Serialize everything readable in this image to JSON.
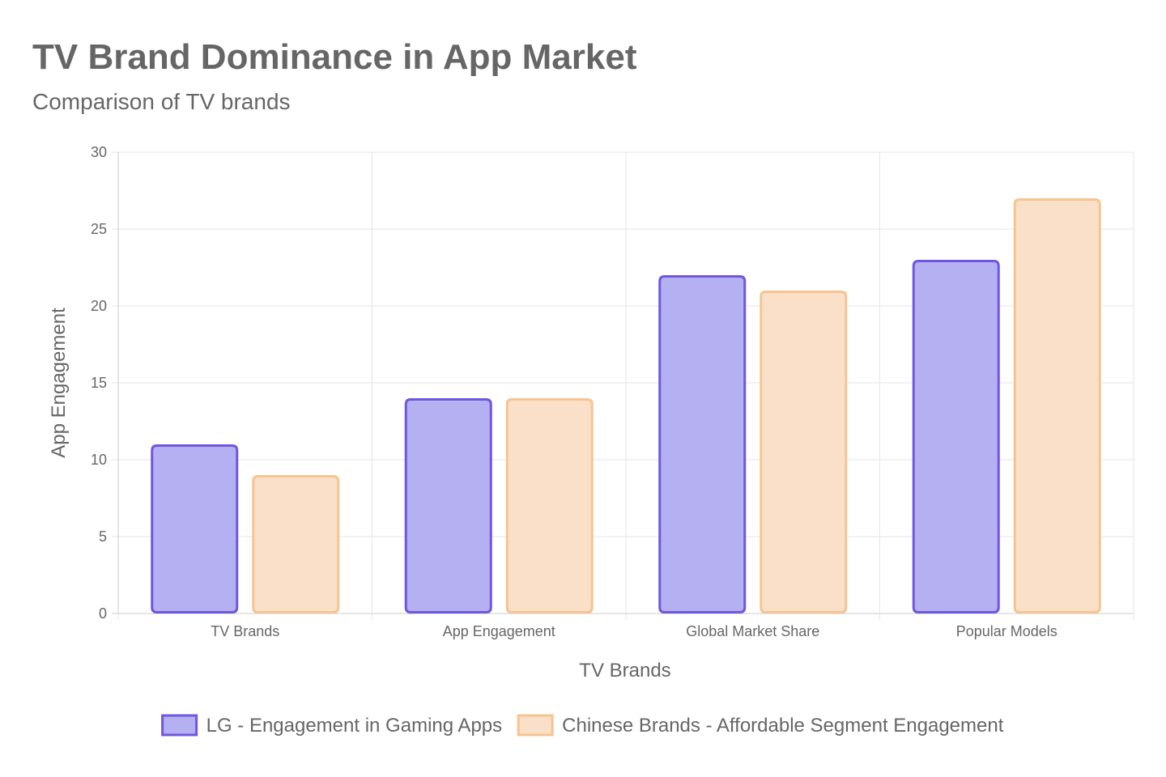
{
  "chart_data": {
    "type": "bar",
    "title": "TV Brand Dominance in App Market",
    "subtitle": "Comparison of TV brands",
    "xlabel": "TV Brands",
    "ylabel": "App Engagement",
    "categories": [
      "TV Brands",
      "App Engagement",
      "Global Market Share",
      "Popular Models"
    ],
    "ylim": [
      0,
      30
    ],
    "yticks": [
      0,
      5,
      10,
      15,
      20,
      25,
      30
    ],
    "grid": true,
    "legend_position": "bottom",
    "series": [
      {
        "name": "LG - Engagement in Gaming Apps",
        "values": [
          11,
          14,
          22,
          23
        ],
        "fill": "#b4b0f2",
        "stroke": "#6f57de"
      },
      {
        "name": "Chinese Brands - Affordable Segment Engagement",
        "values": [
          9,
          14,
          21,
          27
        ],
        "fill": "#fae0c8",
        "stroke": "#f6c491"
      }
    ]
  }
}
